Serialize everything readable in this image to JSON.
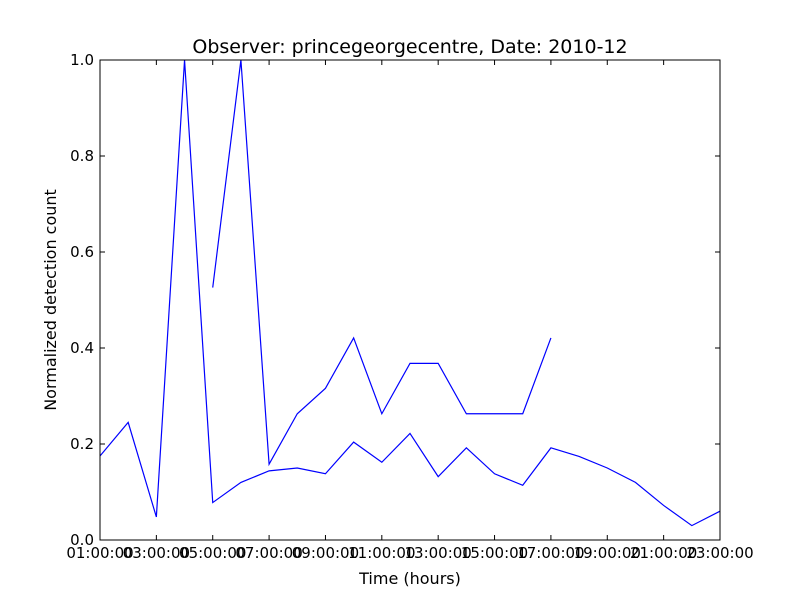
{
  "chart_data": {
    "type": "line",
    "title": "Observer: princegeorgecentre, Date: 2010-12",
    "xlabel": "Time (hours)",
    "ylabel": "Normalized detection count",
    "xlim": [
      1,
      23
    ],
    "ylim": [
      0.0,
      1.0
    ],
    "x_ticks": [
      {
        "value": 1,
        "label": "01:00:00"
      },
      {
        "value": 3,
        "label": "03:00:00"
      },
      {
        "value": 5,
        "label": "05:00:00"
      },
      {
        "value": 7,
        "label": "07:00:00"
      },
      {
        "value": 9,
        "label": "09:00:00"
      },
      {
        "value": 11,
        "label": "11:00:00"
      },
      {
        "value": 13,
        "label": "13:00:00"
      },
      {
        "value": 15,
        "label": "15:00:00"
      },
      {
        "value": 17,
        "label": "17:00:00"
      },
      {
        "value": 19,
        "label": "19:00:00"
      },
      {
        "value": 21,
        "label": "21:00:00"
      },
      {
        "value": 23,
        "label": "23:00:00"
      }
    ],
    "y_ticks": [
      {
        "value": 0.0,
        "label": "0.0"
      },
      {
        "value": 0.2,
        "label": "0.2"
      },
      {
        "value": 0.4,
        "label": "0.4"
      },
      {
        "value": 0.6,
        "label": "0.6"
      },
      {
        "value": 0.8,
        "label": "0.8"
      },
      {
        "value": 1.0,
        "label": "1.0"
      }
    ],
    "grid": false,
    "series": [
      {
        "color": "#0000ff",
        "x": [
          1,
          2,
          3,
          4,
          5,
          6,
          7,
          8,
          9,
          10,
          11,
          12,
          13,
          14,
          15,
          16,
          17,
          18,
          19,
          20,
          21,
          22,
          23
        ],
        "y": [
          0.175,
          0.245,
          0.048,
          1.0,
          0.078,
          0.12,
          0.144,
          0.15,
          0.138,
          0.204,
          0.162,
          0.222,
          0.132,
          0.192,
          0.138,
          0.114,
          0.192,
          0.174,
          0.15,
          0.12,
          0.072,
          0.03,
          0.06
        ]
      },
      {
        "color": "#0000ff",
        "x": [
          5,
          6,
          7,
          8,
          9,
          10,
          11,
          12,
          13,
          14,
          15,
          16,
          17
        ],
        "y": [
          0.526,
          1.0,
          0.158,
          0.263,
          0.316,
          0.421,
          0.263,
          0.368,
          0.368,
          0.263,
          0.263,
          0.263,
          0.421
        ]
      }
    ]
  }
}
